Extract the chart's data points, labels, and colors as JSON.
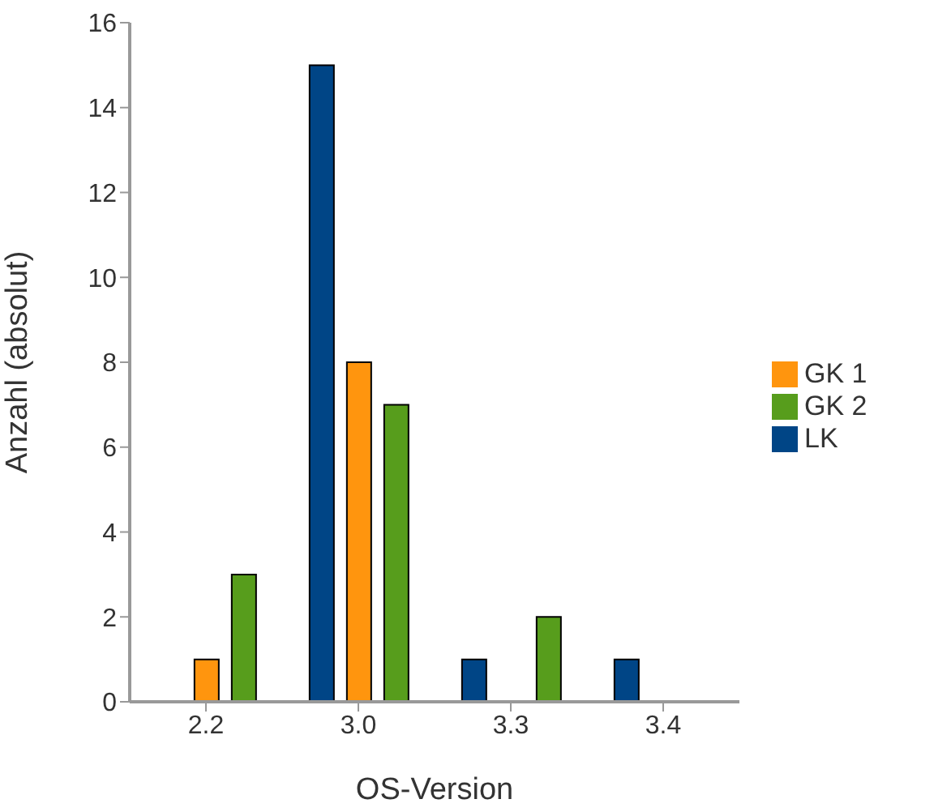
{
  "chart_data": {
    "type": "bar",
    "xlabel": "OS-Version",
    "ylabel": "Anzahl (absolut)",
    "categories": [
      "2.2",
      "3.0",
      "3.3",
      "3.4"
    ],
    "series": [
      {
        "name": "LK",
        "color": "#004586",
        "values": [
          0,
          15,
          1,
          1
        ]
      },
      {
        "name": "GK 1",
        "color": "#ff950e",
        "values": [
          1,
          8,
          0,
          0
        ]
      },
      {
        "name": "GK 2",
        "color": "#579d1c",
        "values": [
          3,
          7,
          2,
          0
        ]
      }
    ],
    "ylim": [
      0,
      16
    ],
    "yticks": [
      0,
      2,
      4,
      6,
      8,
      10,
      12,
      14,
      16
    ],
    "grid": false,
    "legend": "right"
  }
}
